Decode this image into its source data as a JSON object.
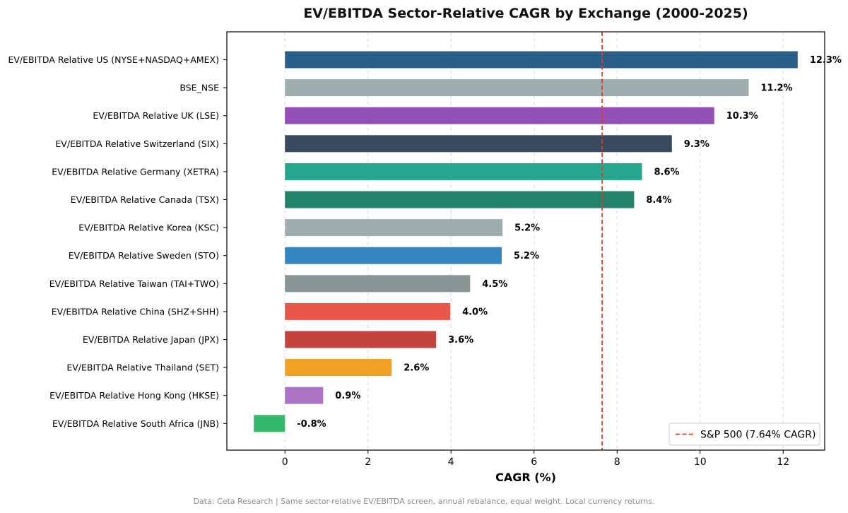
{
  "chart_data": {
    "type": "bar",
    "orientation": "horizontal",
    "title": "EV/EBITDA Sector-Relative CAGR by Exchange (2000-2025)",
    "xlabel": "CAGR (%)",
    "ylabel": "",
    "xlim": [
      -1.4,
      13.0
    ],
    "xticks": [
      0,
      2,
      4,
      6,
      8,
      10,
      12
    ],
    "grid": "vertical dashed",
    "categories": [
      "EV/EBITDA Relative US (NYSE+NASDAQ+AMEX)",
      "BSE_NSE",
      "EV/EBITDA Relative UK (LSE)",
      "EV/EBITDA Relative Switzerland (SIX)",
      "EV/EBITDA Relative Germany (XETRA)",
      "EV/EBITDA Relative Canada (TSX)",
      "EV/EBITDA Relative Korea (KSC)",
      "EV/EBITDA Relative Sweden (STO)",
      "EV/EBITDA Relative Taiwan (TAI+TWO)",
      "EV/EBITDA Relative China (SHZ+SHH)",
      "EV/EBITDA Relative Japan (JPX)",
      "EV/EBITDA Relative Thailand (SET)",
      "EV/EBITDA Relative Hong Kong (HKSE)",
      "EV/EBITDA Relative South Africa (JNB)"
    ],
    "values": [
      12.35,
      11.17,
      10.34,
      9.32,
      8.6,
      8.41,
      5.24,
      5.22,
      4.46,
      3.98,
      3.64,
      2.57,
      0.92,
      -0.75
    ],
    "value_labels": [
      "12.3%",
      "11.2%",
      "10.3%",
      "9.3%",
      "8.6%",
      "8.4%",
      "5.2%",
      "5.2%",
      "4.5%",
      "4.0%",
      "3.6%",
      "2.6%",
      "0.9%",
      "-0.8%"
    ],
    "colors": [
      "#2c5f87",
      "#9eadad",
      "#9351b7",
      "#384a5e",
      "#25a78d",
      "#21836a",
      "#9eadad",
      "#3486c1",
      "#899595",
      "#e9574a",
      "#c2443a",
      "#f1a224",
      "#ab74c4",
      "#35b86e"
    ],
    "reference_line": {
      "value": 7.64,
      "label": "S&P 500 (7.64% CAGR)",
      "color": "#e03a2b",
      "style": "dashed"
    },
    "legend_position": "bottom-right"
  },
  "footnote": "Data: Ceta Research | Same sector-relative EV/EBITDA screen, annual rebalance, equal weight. Local currency returns."
}
